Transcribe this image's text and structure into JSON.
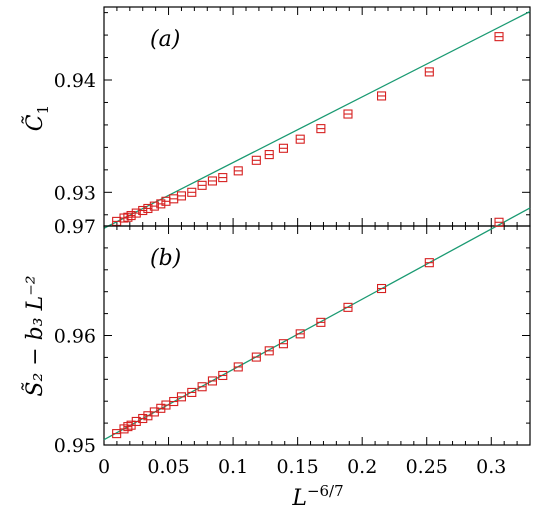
{
  "chart_data": [
    {
      "panel": "(a)",
      "type": "scatter",
      "ylabel_symbol": "C̃",
      "ylabel_sub": "1",
      "ylim": [
        0.927,
        0.9465
      ],
      "yticks": [
        0.93,
        0.94
      ],
      "ytick_labels": [
        "0.93",
        "0.94"
      ],
      "xlim": [
        0,
        0.33
      ],
      "x": [
        0.0098,
        0.0155,
        0.0185,
        0.021,
        0.025,
        0.03,
        0.034,
        0.039,
        0.044,
        0.048,
        0.054,
        0.06,
        0.068,
        0.076,
        0.084,
        0.092,
        0.104,
        0.118,
        0.128,
        0.139,
        0.152,
        0.168,
        0.189,
        0.215,
        0.252,
        0.306
      ],
      "y": [
        0.92741,
        0.92771,
        0.92778,
        0.92793,
        0.92815,
        0.92838,
        0.92856,
        0.92877,
        0.92897,
        0.9292,
        0.92942,
        0.92968,
        0.93,
        0.93062,
        0.93101,
        0.93131,
        0.93191,
        0.93285,
        0.93336,
        0.93392,
        0.93473,
        0.93567,
        0.93697,
        0.93858,
        0.94072,
        0.94386
      ],
      "fit": {
        "x": [
          0,
          0.33
        ],
        "y": [
          0.9268,
          0.9461
        ]
      }
    },
    {
      "panel": "(b)",
      "type": "scatter",
      "ylabel": "S̃₂ − b₃ L⁻²",
      "ylim": [
        0.95,
        0.97
      ],
      "yticks": [
        0.95,
        0.96,
        0.97
      ],
      "ytick_labels": [
        "0.95",
        "0.96",
        "0.97"
      ],
      "xlim": [
        0,
        0.33
      ],
      "xticks": [
        0,
        0.05,
        0.1,
        0.15,
        0.2,
        0.25,
        0.3
      ],
      "xtick_labels": [
        "0",
        "0.05",
        "0.1",
        "0.15",
        "0.2",
        "0.25",
        "0.3"
      ],
      "xlabel": "L",
      "xlabel_exp": "−6/7",
      "x": [
        0.0098,
        0.0155,
        0.0185,
        0.021,
        0.025,
        0.03,
        0.034,
        0.039,
        0.044,
        0.048,
        0.054,
        0.06,
        0.068,
        0.076,
        0.084,
        0.092,
        0.104,
        0.118,
        0.128,
        0.139,
        0.152,
        0.168,
        0.189,
        0.215,
        0.252,
        0.306
      ],
      "y": [
        0.95104,
        0.95147,
        0.95168,
        0.95181,
        0.95215,
        0.95242,
        0.95267,
        0.95302,
        0.95335,
        0.95365,
        0.95397,
        0.9544,
        0.9548,
        0.95532,
        0.95585,
        0.95635,
        0.95713,
        0.95803,
        0.9586,
        0.95925,
        0.96015,
        0.9612,
        0.96257,
        0.96429,
        0.96665,
        0.97034
      ],
      "fit": {
        "x": [
          0,
          0.33
        ],
        "y": [
          0.95049,
          0.97165
        ]
      }
    }
  ]
}
